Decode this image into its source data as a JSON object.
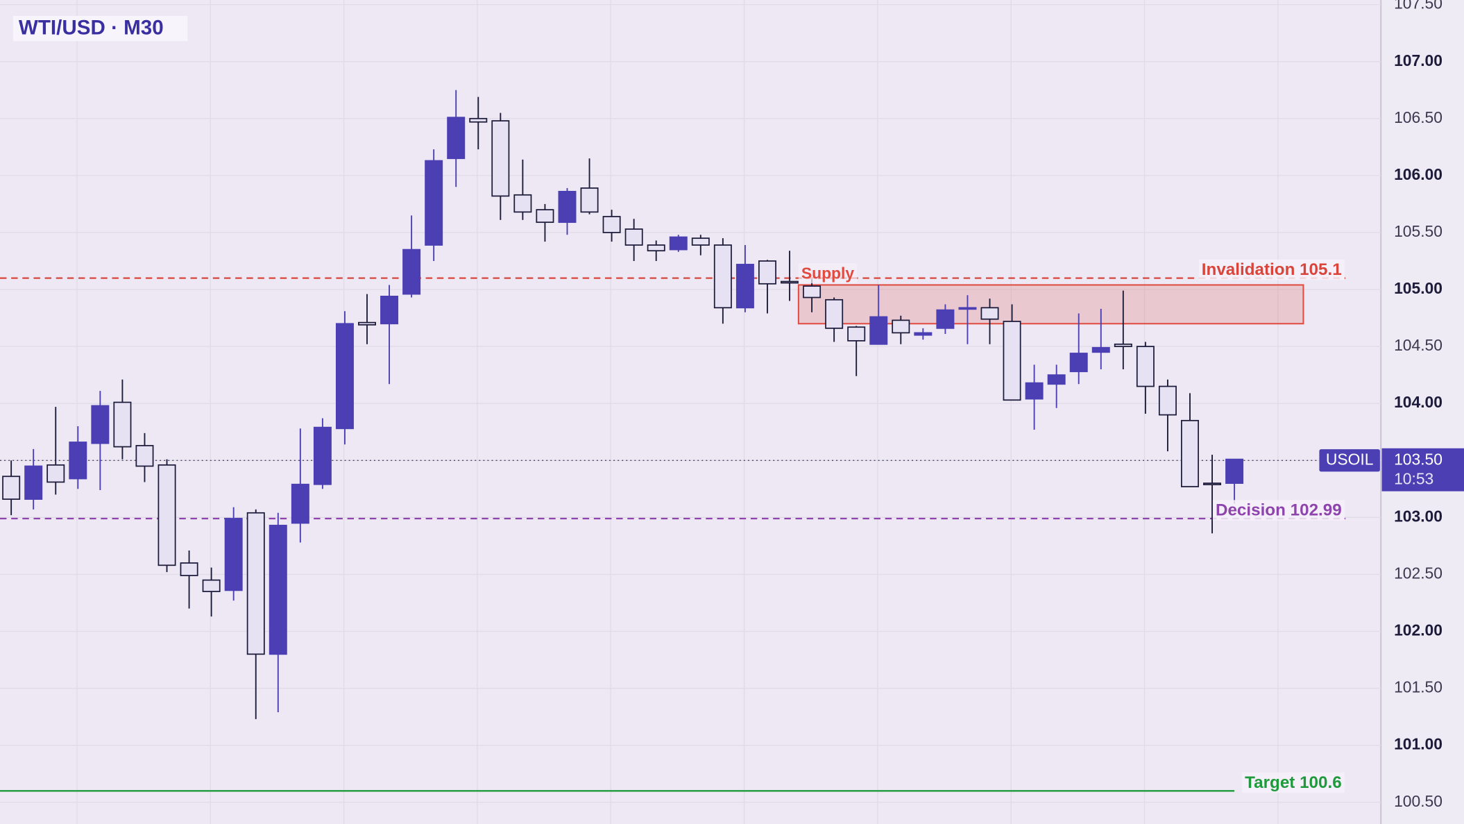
{
  "chart_data": {
    "type": "candlestick",
    "title": "WTI/USD · M30",
    "ylim": [
      100.31,
      107.54
    ],
    "yticks": [
      {
        "value": 100.5,
        "label": "100.50"
      },
      {
        "value": 101,
        "label": "101.00"
      },
      {
        "value": 101.5,
        "label": "101.50"
      },
      {
        "value": 102,
        "label": "102.00"
      },
      {
        "value": 102.5,
        "label": "102.50"
      },
      {
        "value": 103,
        "label": "103.00"
      },
      {
        "value": 103.5,
        "label": "103.50"
      },
      {
        "value": 104,
        "label": "104.00"
      },
      {
        "value": 104.5,
        "label": "104.50"
      },
      {
        "value": 105,
        "label": "105.00"
      },
      {
        "value": 105.5,
        "label": "105.50"
      },
      {
        "value": 106,
        "label": "106.00"
      },
      {
        "value": 106.5,
        "label": "106.50"
      },
      {
        "value": 107,
        "label": "107.00"
      },
      {
        "value": 107.5,
        "label": "107.50"
      }
    ],
    "grid": true,
    "up_color": "#4b3fb3",
    "down_color": "#e6e2f3",
    "outline_color": "#1d1b3a",
    "candles": {
      "open": [
        103.36,
        103.16,
        103.46,
        103.34,
        103.65,
        104.01,
        103.63,
        103.46,
        102.6,
        102.45,
        102.36,
        103.04,
        101.8,
        102.95,
        103.29,
        103.78,
        104.71,
        104.7,
        104.96,
        105.39,
        106.15,
        106.5,
        106.48,
        105.83,
        105.7,
        105.59,
        105.89,
        105.64,
        105.53,
        105.39,
        105.35,
        105.45,
        105.39,
        104.84,
        105.25,
        105.07,
        105.03,
        104.91,
        104.67,
        104.52,
        104.73,
        104.6,
        104.66,
        104.84,
        104.84,
        104.72,
        104.04,
        104.17,
        104.28,
        104.45,
        104.52,
        104.5,
        104.15,
        103.85,
        103.3,
        103.3
      ],
      "high": [
        103.5,
        103.6,
        103.97,
        103.8,
        104.11,
        104.21,
        103.74,
        103.51,
        102.71,
        102.56,
        103.09,
        103.07,
        103.04,
        103.78,
        103.87,
        104.81,
        104.96,
        105.04,
        105.65,
        106.23,
        106.75,
        106.69,
        106.55,
        106.14,
        105.75,
        105.89,
        106.15,
        105.7,
        105.62,
        105.43,
        105.48,
        105.48,
        105.45,
        105.39,
        105.26,
        105.34,
        105.09,
        104.93,
        104.68,
        105.04,
        104.77,
        104.66,
        104.87,
        104.95,
        104.92,
        104.87,
        104.34,
        104.34,
        104.79,
        104.83,
        104.99,
        104.54,
        104.21,
        104.09,
        103.55,
        103.51
      ],
      "low": [
        103.02,
        103.07,
        103.2,
        103.25,
        103.24,
        103.51,
        103.31,
        102.52,
        102.2,
        102.13,
        102.27,
        101.23,
        101.29,
        102.78,
        103.25,
        103.64,
        104.52,
        104.17,
        104.93,
        105.25,
        105.9,
        106.23,
        105.61,
        105.61,
        105.42,
        105.48,
        105.66,
        105.42,
        105.25,
        105.25,
        105.33,
        105.3,
        104.7,
        104.8,
        104.79,
        104.9,
        104.8,
        104.54,
        104.24,
        104.52,
        104.52,
        104.56,
        104.61,
        104.52,
        104.52,
        104.03,
        103.77,
        103.96,
        104.17,
        104.3,
        104.3,
        103.91,
        103.58,
        103.27,
        102.86,
        103.12
      ],
      "close": [
        103.16,
        103.45,
        103.31,
        103.66,
        103.98,
        103.62,
        103.45,
        102.58,
        102.49,
        102.35,
        102.99,
        101.8,
        102.93,
        103.29,
        103.79,
        104.7,
        104.69,
        104.94,
        105.35,
        106.13,
        106.51,
        106.47,
        105.82,
        105.68,
        105.59,
        105.86,
        105.68,
        105.5,
        105.39,
        105.34,
        105.46,
        105.39,
        104.84,
        105.22,
        105.05,
        105.06,
        104.93,
        104.66,
        104.55,
        104.76,
        104.62,
        104.62,
        104.82,
        104.84,
        104.74,
        104.03,
        104.18,
        104.25,
        104.44,
        104.49,
        104.5,
        104.15,
        103.9,
        103.27,
        103.29,
        103.51
      ]
    },
    "zone": {
      "label": "Supply",
      "top": 105.04,
      "bottom": 104.7,
      "from_index": 35.4,
      "to_index": 58.1,
      "color": "#e04a3f"
    },
    "levels": [
      {
        "label": "Invalidation 105.1",
        "value": 105.1,
        "color": "#d9453a",
        "style": "dashed"
      },
      {
        "label": "Decision 102.99",
        "value": 102.99,
        "color": "#8e44ad",
        "style": "dashed"
      },
      {
        "label": "Target 100.6",
        "value": 100.6,
        "color": "#1e9a3c",
        "style": "solid"
      }
    ],
    "current_price": {
      "name": "USOIL",
      "value": 103.5,
      "label": "103.50",
      "countdown": "10:53"
    }
  }
}
